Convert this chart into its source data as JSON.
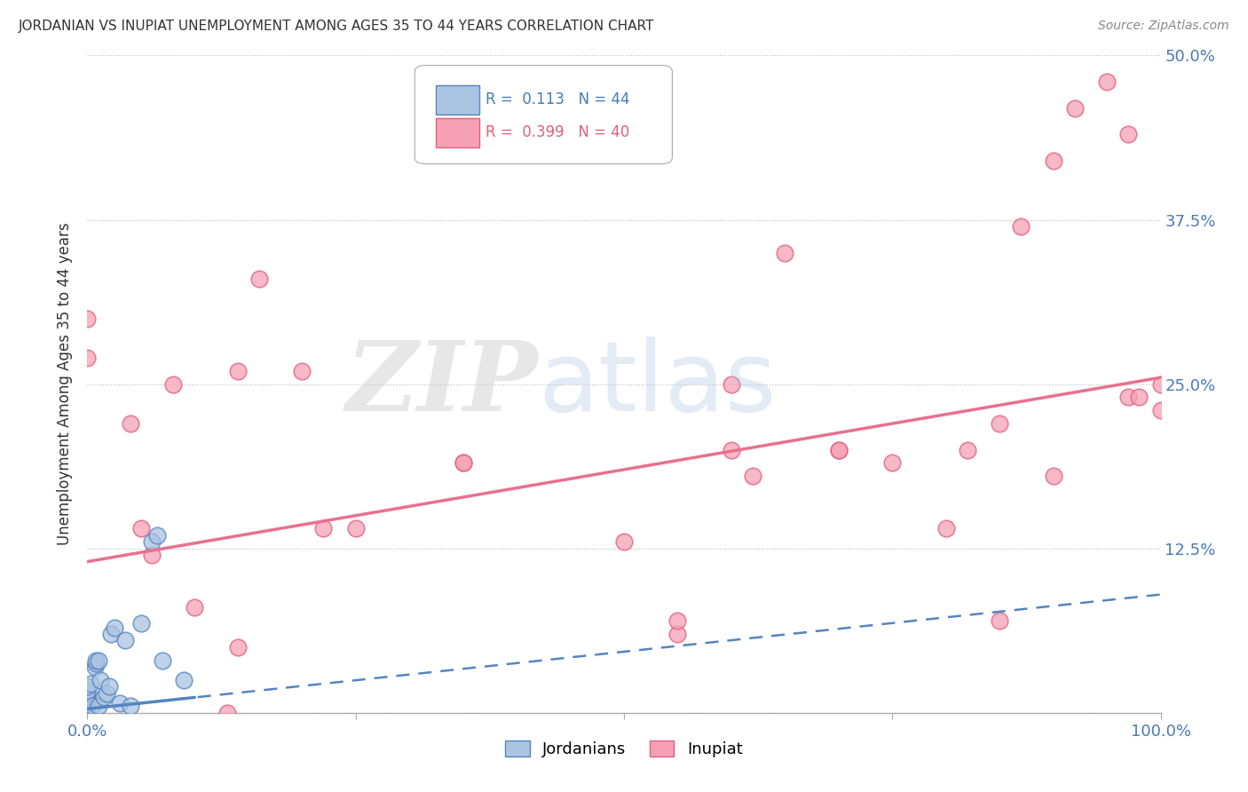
{
  "title": "JORDANIAN VS INUPIAT UNEMPLOYMENT AMONG AGES 35 TO 44 YEARS CORRELATION CHART",
  "source": "Source: ZipAtlas.com",
  "ylabel": "Unemployment Among Ages 35 to 44 years",
  "xlim": [
    0.0,
    1.0
  ],
  "ylim": [
    0.0,
    0.5
  ],
  "xticks": [
    0.0,
    0.25,
    0.5,
    0.75,
    1.0
  ],
  "xtick_labels": [
    "0.0%",
    "",
    "",
    "",
    "100.0%"
  ],
  "ytick_labels_right": [
    "",
    "12.5%",
    "25.0%",
    "37.5%",
    "50.0%"
  ],
  "yticks": [
    0.0,
    0.125,
    0.25,
    0.375,
    0.5
  ],
  "jordanian_color": "#aac4e2",
  "inupiat_color": "#f5a0b5",
  "jordanian_edge_color": "#5585c0",
  "inupiat_edge_color": "#e06080",
  "jordanian_line_color": "#5585c0",
  "inupiat_line_color": "#e87090",
  "background_color": "#ffffff",
  "jordanian_x": [
    0.0,
    0.0,
    0.0,
    0.0,
    0.0,
    0.0,
    0.0,
    0.0,
    0.0,
    0.0,
    0.0,
    0.0,
    0.0,
    0.0,
    0.0,
    0.0,
    0.0,
    0.0,
    0.0,
    0.0,
    0.0,
    0.0,
    0.0,
    0.003,
    0.005,
    0.007,
    0.008,
    0.008,
    0.01,
    0.01,
    0.012,
    0.015,
    0.018,
    0.02,
    0.022,
    0.025,
    0.03,
    0.035,
    0.04,
    0.05,
    0.06,
    0.065,
    0.07,
    0.09
  ],
  "jordanian_y": [
    0.0,
    0.0,
    0.0,
    0.0,
    0.0,
    0.002,
    0.003,
    0.005,
    0.005,
    0.007,
    0.008,
    0.008,
    0.009,
    0.01,
    0.01,
    0.01,
    0.011,
    0.012,
    0.013,
    0.015,
    0.015,
    0.017,
    0.02,
    0.022,
    0.005,
    0.035,
    0.038,
    0.04,
    0.005,
    0.04,
    0.025,
    0.012,
    0.015,
    0.02,
    0.06,
    0.065,
    0.007,
    0.055,
    0.005,
    0.068,
    0.13,
    0.135,
    0.04,
    0.025
  ],
  "inupiat_x": [
    0.0,
    0.0,
    0.04,
    0.05,
    0.06,
    0.08,
    0.1,
    0.13,
    0.14,
    0.14,
    0.16,
    0.2,
    0.22,
    0.25,
    0.35,
    0.35,
    0.5,
    0.55,
    0.55,
    0.6,
    0.6,
    0.62,
    0.65,
    0.7,
    0.7,
    0.75,
    0.8,
    0.82,
    0.85,
    0.85,
    0.87,
    0.9,
    0.9,
    0.92,
    0.95,
    0.97,
    0.97,
    0.98,
    1.0,
    1.0
  ],
  "inupiat_y": [
    0.27,
    0.3,
    0.22,
    0.14,
    0.12,
    0.25,
    0.08,
    0.0,
    0.05,
    0.26,
    0.33,
    0.26,
    0.14,
    0.14,
    0.19,
    0.19,
    0.13,
    0.06,
    0.07,
    0.25,
    0.2,
    0.18,
    0.35,
    0.2,
    0.2,
    0.19,
    0.14,
    0.2,
    0.22,
    0.07,
    0.37,
    0.42,
    0.18,
    0.46,
    0.48,
    0.44,
    0.24,
    0.24,
    0.25,
    0.23
  ],
  "inupiat_trend_y_start": 0.115,
  "inupiat_trend_y_end": 0.255,
  "jordanian_trend_y_start": 0.003,
  "jordanian_trend_y_end": 0.09
}
